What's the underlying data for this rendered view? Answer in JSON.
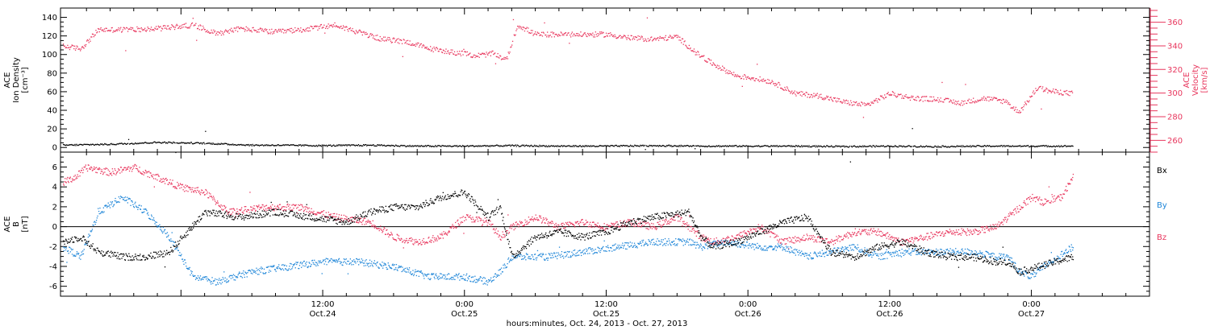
{
  "footer": {
    "xlabel": "hours:minutes, Oct. 24, 2013 - Oct. 27, 2013"
  },
  "chart_data": [
    {
      "type": "scatter",
      "panel": "top",
      "x_unit": "hours since Oct 24 2013 00:00 (axis labels as shown)",
      "xlim": [
        -10.2,
        82.0
      ],
      "x_ticks": [
        {
          "x": 12,
          "label": "12:00",
          "sub": "Oct.24"
        },
        {
          "x": 24,
          "label": "0:00",
          "sub": "Oct.25"
        },
        {
          "x": 36,
          "label": "12:00",
          "sub": "Oct.25"
        },
        {
          "x": 48,
          "label": "0:00",
          "sub": "Oct.26"
        },
        {
          "x": 60,
          "label": "12:00",
          "sub": "Oct.26"
        },
        {
          "x": 72,
          "label": "0:00",
          "sub": "Oct.27"
        }
      ],
      "left_axis": {
        "label_lines": [
          "ACE",
          "Ion Density",
          "[cm⁻³]"
        ],
        "ylim": [
          -5,
          150
        ],
        "ticks": [
          0,
          20,
          40,
          60,
          80,
          100,
          120,
          140
        ],
        "color": "#000000"
      },
      "right_axis": {
        "label_lines": [
          "ACE",
          "Velocity",
          "[km/s]"
        ],
        "ylim": [
          250,
          372
        ],
        "ticks": [
          260,
          280,
          300,
          320,
          340,
          360
        ],
        "color": "#e8365d"
      },
      "series": [
        {
          "key": "density",
          "color": "#000000",
          "axis": "left",
          "x": [
            -10,
            -6,
            -2,
            2,
            4,
            6,
            8,
            12,
            16,
            20,
            24,
            28,
            32,
            36,
            40,
            44,
            48,
            52,
            56,
            60,
            64,
            68,
            72,
            75.5
          ],
          "values": [
            3,
            4,
            6,
            5,
            4,
            3,
            3,
            2.5,
            3,
            2,
            2,
            2.5,
            2,
            2,
            2.5,
            2,
            2,
            2,
            1.5,
            2,
            1.5,
            2,
            2,
            2
          ]
        },
        {
          "key": "velocity",
          "color": "#e8365d",
          "axis": "right",
          "x": [
            -10,
            -8.5,
            -7,
            -5,
            -2,
            1,
            3,
            5,
            8,
            11,
            13,
            15,
            17,
            19,
            21,
            23,
            25,
            26.5,
            27.5,
            28.5,
            30,
            33,
            36,
            38,
            40,
            42,
            43.5,
            44.5,
            46,
            47,
            48.5,
            50,
            51,
            52,
            54,
            56,
            58,
            60,
            62,
            64,
            66,
            68,
            70,
            70.3,
            71,
            72.5,
            73.5,
            75.5
          ],
          "values": [
            340,
            338,
            354,
            354,
            355,
            358,
            351,
            355,
            352,
            355,
            358,
            352,
            346,
            344,
            338,
            335,
            332,
            334,
            328,
            358,
            350,
            350,
            350,
            347,
            346,
            348,
            335,
            328,
            320,
            315,
            313,
            310,
            305,
            300,
            298,
            293,
            290,
            300,
            296,
            295,
            292,
            296,
            293,
            288,
            285,
            305,
            302,
            300
          ]
        }
      ]
    },
    {
      "type": "scatter",
      "panel": "bottom",
      "xlim": [
        -10.2,
        82.0
      ],
      "y_axis": {
        "label_lines": [
          "ACE",
          "B",
          "[nT]"
        ],
        "ylim": [
          -7,
          7.5
        ],
        "ticks": [
          -6,
          -4,
          -2,
          0,
          2,
          4,
          6
        ]
      },
      "zero_line": true,
      "series": [
        {
          "name": "Bx",
          "color": "#000000",
          "x": [
            -10,
            -8.5,
            -7,
            -5,
            -3,
            -1,
            2,
            5,
            8,
            11,
            14,
            16,
            18,
            20,
            22,
            24,
            26,
            27,
            28,
            30,
            32,
            34,
            36,
            38,
            40,
            43,
            44,
            45,
            47,
            49,
            51,
            53,
            55,
            57,
            59,
            61,
            63,
            65,
            67,
            69,
            70,
            71,
            72.5,
            74,
            75.5
          ],
          "values": [
            -1.5,
            -1,
            -2.5,
            -3,
            -3,
            -2.5,
            1.5,
            1,
            1.5,
            1,
            0.5,
            1.5,
            2,
            2,
            3,
            3.5,
            1,
            2,
            -3,
            -1,
            -0.5,
            -1,
            -0.5,
            0.5,
            1,
            1.5,
            -1,
            -2,
            -1.5,
            -0.5,
            0.5,
            1,
            -2.5,
            -3,
            -2,
            -1.5,
            -2.5,
            -3,
            -3,
            -3.5,
            -3.5,
            -4.5,
            -4,
            -3.5,
            -3
          ]
        },
        {
          "name": "By",
          "color": "#1f86d8",
          "x": [
            -10,
            -8.5,
            -7,
            -5,
            -3,
            -1,
            1,
            3,
            6,
            9,
            12,
            15,
            18,
            21,
            24,
            26,
            27,
            28,
            31,
            34,
            37,
            40,
            43,
            44,
            46,
            49,
            51,
            53,
            55,
            57,
            59,
            61,
            63,
            65,
            67,
            69,
            70,
            71,
            72,
            73.5,
            75.5
          ],
          "values": [
            -2,
            -3,
            1.5,
            3,
            1.5,
            -1,
            -5,
            -5.5,
            -4.5,
            -4,
            -3.5,
            -3.5,
            -4,
            -5,
            -5,
            -5.5,
            -4.5,
            -3,
            -3,
            -2.5,
            -2,
            -1.5,
            -1.5,
            -2,
            -1.5,
            -2,
            -2,
            -3,
            -2.5,
            -2,
            -3,
            -2.5,
            -2.5,
            -2.5,
            -2.5,
            -3,
            -3,
            -4.5,
            -5,
            -3.5,
            -2
          ]
        },
        {
          "name": "Bz",
          "color": "#e8365d",
          "x": [
            -10,
            -9,
            -8,
            -6,
            -4,
            -2,
            0,
            2,
            4,
            7,
            10,
            13,
            16,
            18,
            20,
            22,
            24,
            26,
            27,
            28,
            30,
            32,
            34,
            36,
            38,
            40,
            42,
            44,
            45,
            47,
            49,
            51,
            53,
            55,
            57,
            59,
            61,
            63,
            65,
            67,
            69,
            70,
            71,
            72,
            73,
            74.5,
            75.5
          ],
          "values": [
            4.5,
            5,
            6,
            5.5,
            6,
            5,
            4,
            3.5,
            1.5,
            2,
            2,
            1,
            0.5,
            -1,
            -1.5,
            -1,
            1,
            0.5,
            -1,
            0,
            1,
            0,
            0.5,
            0,
            0.5,
            0,
            1,
            -1,
            -1.5,
            -1,
            0,
            -1.5,
            -1,
            -1.5,
            -0.5,
            -0.5,
            -1.5,
            -1,
            -0.5,
            -0.5,
            0,
            1,
            2,
            3,
            2.5,
            3,
            5
          ]
        }
      ],
      "legend": [
        "Bx",
        "By",
        "Bz"
      ]
    }
  ]
}
